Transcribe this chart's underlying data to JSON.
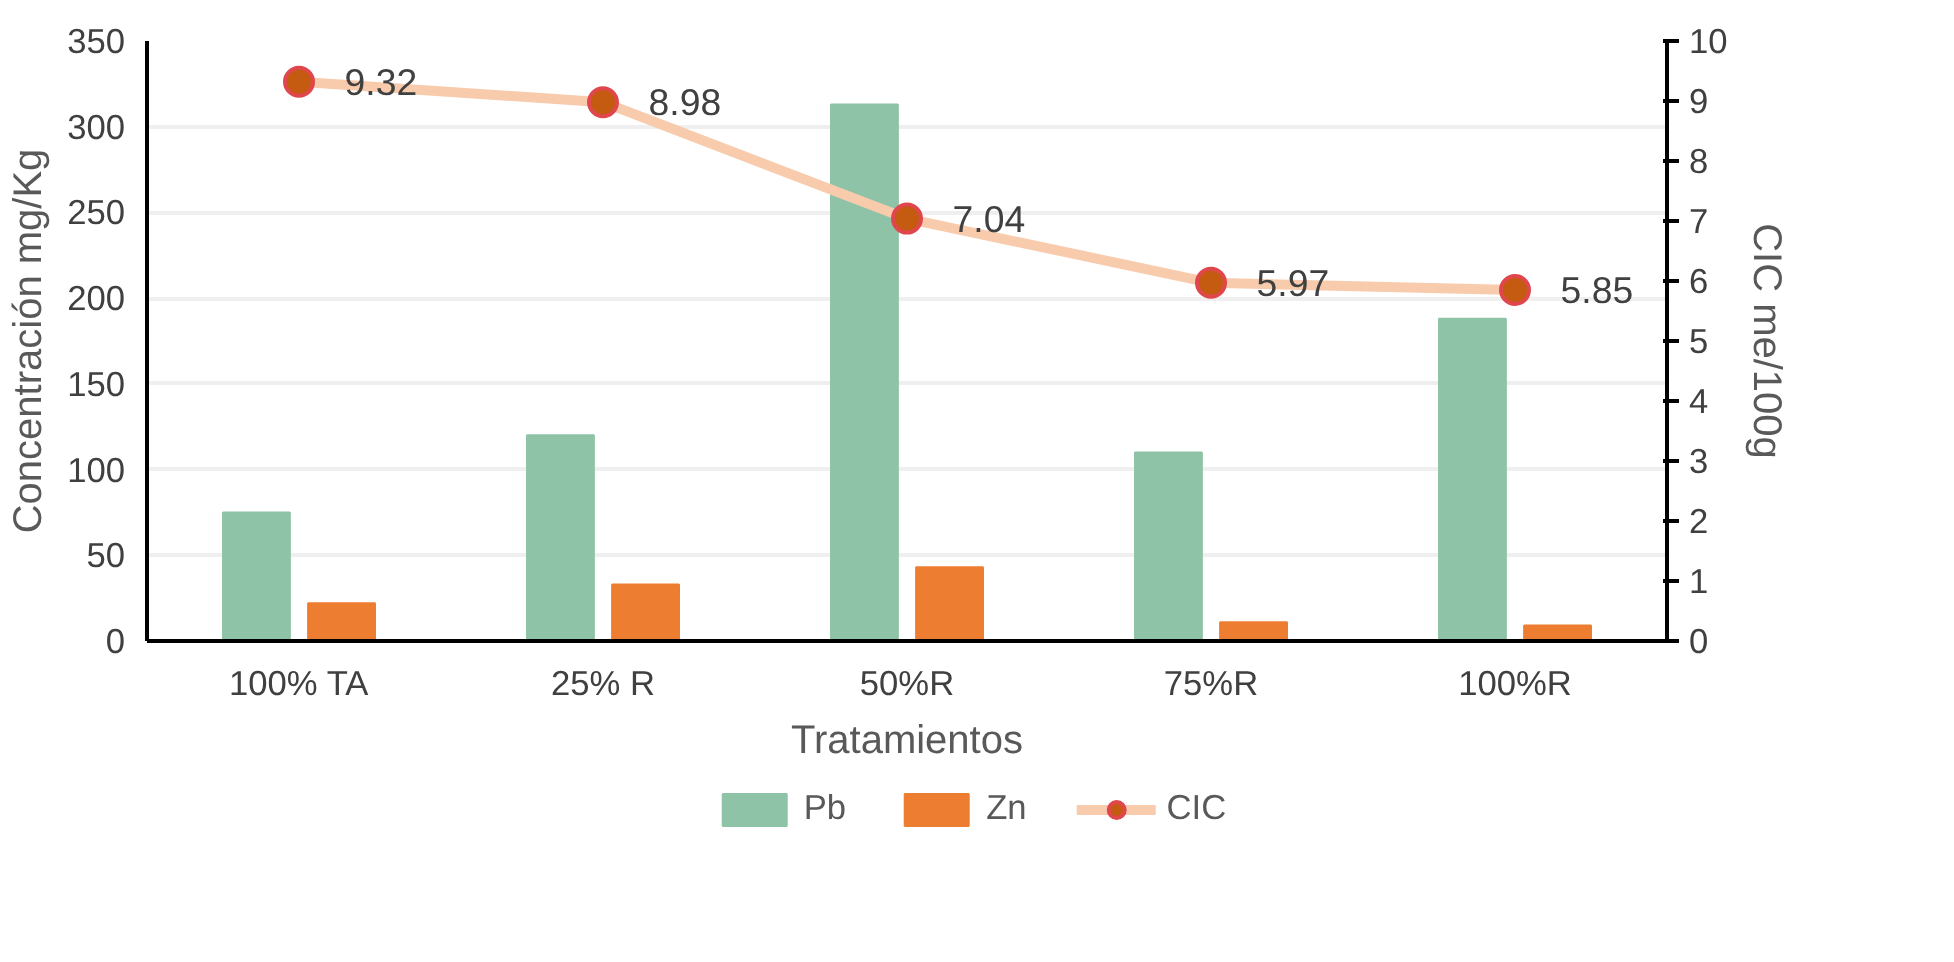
{
  "chart_data": {
    "type": "bar",
    "categories": [
      "100% TA",
      "25% R",
      "50%R",
      "75%R",
      "100%R"
    ],
    "xlabel": "Tratamientos",
    "ylabel": "Concentración mg/Kg",
    "y2label": "CIC me/100g",
    "ylim": [
      0,
      350
    ],
    "yticks": [
      0,
      50,
      100,
      150,
      200,
      250,
      300,
      350
    ],
    "y2lim": [
      0,
      10
    ],
    "y2ticks": [
      0,
      1,
      2,
      3,
      4,
      5,
      6,
      7,
      8,
      9,
      10
    ],
    "grid": "y",
    "legend": "bottom",
    "series": [
      {
        "name": "Pb",
        "color": "#8fc3a7",
        "values": [
          75,
          120,
          313,
          110,
          188
        ]
      },
      {
        "name": "Zn",
        "color": "#ed7d31",
        "values": [
          22,
          33,
          43,
          11,
          9
        ]
      },
      {
        "name": "CIC",
        "type": "line",
        "axis": "y2",
        "color": "#f8cbad",
        "marker": "circle",
        "values": [
          9.32,
          8.98,
          7.04,
          5.97,
          5.85
        ],
        "value_labels": [
          "9.32",
          "8.98",
          "7.04",
          "5.97",
          "5.85"
        ]
      }
    ]
  }
}
